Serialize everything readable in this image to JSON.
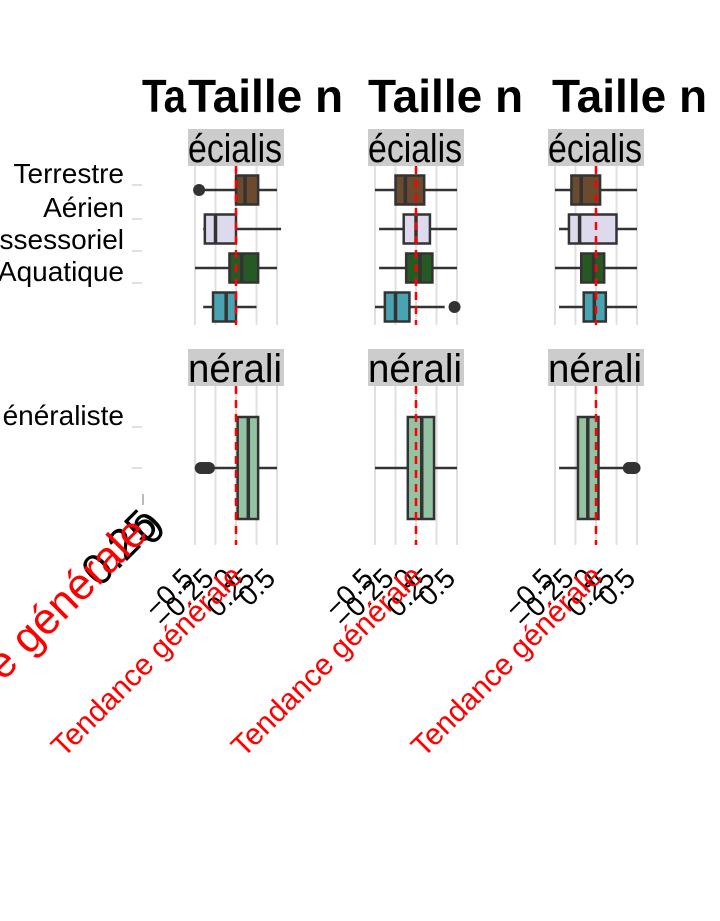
{
  "chart_data": {
    "type": "boxplot",
    "panel_title": "Taille n",
    "ylabels_big": "0.25",
    "reference": {
      "value": 0.0,
      "label": "Tendance générale",
      "color": "#ff0000",
      "style": "dashed"
    },
    "x_ticks": [
      -0.5,
      -0.25,
      0,
      0.25,
      0.5
    ],
    "x_tick_labels": [
      "−0.5",
      "−0.25",
      "0",
      "0.25",
      "0.5"
    ],
    "xlim": [
      -0.5,
      0.5
    ],
    "rows": [
      {
        "strip": "écialis",
        "categories": [
          "Terrestre",
          "Aérien",
          "essessoriel",
          "Aquatique"
        ]
      },
      {
        "strip": "nérali",
        "categories": [
          "énéraliste"
        ]
      }
    ],
    "colors": {
      "Terrestre": "#6b4a2e",
      "Aérien": "#dcdaec",
      "essessoriel": "#255a24",
      "Aquatique": "#4aa3b0",
      "énéraliste": "#93c3a2",
      "strip_bg": "#cccccc",
      "grid": "#e0e0e0",
      "box_outline": "#333333"
    },
    "panels": [
      {
        "column": 1,
        "specialist": [
          {
            "category": "Terrestre",
            "whisker_low": -0.38,
            "q1": 0.0,
            "median": 0.11,
            "q3": 0.27,
            "whisker_high": 0.5,
            "outliers": [
              -0.45
            ]
          },
          {
            "category": "Aérien",
            "whisker_low": -0.4,
            "q1": -0.38,
            "median": -0.25,
            "q3": 0.0,
            "whisker_high": 0.55,
            "outliers": []
          },
          {
            "category": "essessoriel",
            "whisker_low": -0.5,
            "q1": -0.08,
            "median": 0.07,
            "q3": 0.27,
            "whisker_high": 0.5,
            "outliers": []
          },
          {
            "category": "Aquatique",
            "whisker_low": -0.4,
            "q1": -0.28,
            "median": -0.12,
            "q3": 0.0,
            "whisker_high": 0.25,
            "outliers": []
          }
        ],
        "generalist": [
          {
            "category": "énéraliste",
            "whisker_low": -0.3,
            "q1": 0.02,
            "median": 0.15,
            "q3": 0.27,
            "whisker_high": 0.5,
            "outliers": [
              -0.43,
              -0.4,
              -0.37,
              -0.35,
              -0.33
            ]
          }
        ]
      },
      {
        "column": 2,
        "specialist": [
          {
            "category": "Terrestre",
            "whisker_low": -0.5,
            "q1": -0.25,
            "median": -0.13,
            "q3": 0.1,
            "whisker_high": 0.5,
            "outliers": []
          },
          {
            "category": "Aérien",
            "whisker_low": -0.45,
            "q1": -0.15,
            "median": 0.0,
            "q3": 0.17,
            "whisker_high": 0.5,
            "outliers": []
          },
          {
            "category": "essessoriel",
            "whisker_low": -0.45,
            "q1": -0.12,
            "median": 0.05,
            "q3": 0.2,
            "whisker_high": 0.5,
            "outliers": []
          },
          {
            "category": "Aquatique",
            "whisker_low": -0.5,
            "q1": -0.38,
            "median": -0.25,
            "q3": -0.08,
            "whisker_high": 0.35,
            "outliers": [
              0.47
            ]
          }
        ],
        "generalist": [
          {
            "category": "énéraliste",
            "whisker_low": -0.5,
            "q1": -0.1,
            "median": 0.07,
            "q3": 0.22,
            "whisker_high": 0.5,
            "outliers": []
          }
        ]
      },
      {
        "column": 3,
        "specialist": [
          {
            "category": "Terrestre",
            "whisker_low": -0.5,
            "q1": -0.3,
            "median": -0.18,
            "q3": 0.05,
            "whisker_high": 0.5,
            "outliers": []
          },
          {
            "category": "Aérien",
            "whisker_low": -0.45,
            "q1": -0.33,
            "median": -0.2,
            "q3": 0.25,
            "whisker_high": 0.5,
            "outliers": []
          },
          {
            "category": "essessoriel",
            "whisker_low": -0.5,
            "q1": -0.18,
            "median": -0.03,
            "q3": 0.1,
            "whisker_high": 0.5,
            "outliers": []
          },
          {
            "category": "Aquatique",
            "whisker_low": -0.45,
            "q1": -0.15,
            "median": -0.02,
            "q3": 0.12,
            "whisker_high": 0.5,
            "outliers": []
          }
        ],
        "generalist": [
          {
            "category": "énéraliste",
            "whisker_low": -0.45,
            "q1": -0.22,
            "median": -0.1,
            "q3": 0.03,
            "whisker_high": 0.4,
            "outliers": [
              0.4,
              0.43,
              0.45,
              0.47
            ]
          }
        ]
      }
    ]
  }
}
